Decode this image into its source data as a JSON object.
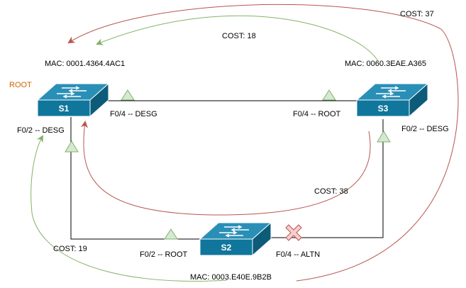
{
  "colors": {
    "switch_front": "#10769B",
    "switch_top": "#2A8FB7",
    "switch_side": "#0B5B79",
    "arrow_red": "#B85450",
    "arrow_green": "#82B366",
    "port_fill": "#D5E8D4",
    "port_stroke": "#82B366",
    "blocked_fill": "#F8CECC",
    "blocked_stroke": "#B85450",
    "root_label": "#CC6600",
    "link": "#000000"
  },
  "switches": {
    "s1": {
      "name": "S1",
      "mac": "MAC: 0001.4364.4AC1",
      "role": "ROOT",
      "icon": "switch-icon"
    },
    "s2": {
      "name": "S2",
      "mac": "MAC: 0003.E40E.9B2B",
      "icon": "switch-icon"
    },
    "s3": {
      "name": "S3",
      "mac": "MAC: 0060.3EAE.A365",
      "icon": "switch-icon"
    }
  },
  "ports": {
    "s1_f04": "F0/4 -- DESG",
    "s1_f02": "F0/2 -- DESG",
    "s3_f04": "F0/4 -- ROOT",
    "s3_f02": "F0/2 -- DESG",
    "s2_f02": "F0/2 -- ROOT",
    "s2_f04": "F0/4 -- ALTN"
  },
  "costs": {
    "s3_to_s1": "COST: 18",
    "s2_to_s1_via_s3": "COST: 37",
    "s3_to_s1_via_s2": "COST: 38",
    "s2_to_s1": "COST: 19"
  }
}
